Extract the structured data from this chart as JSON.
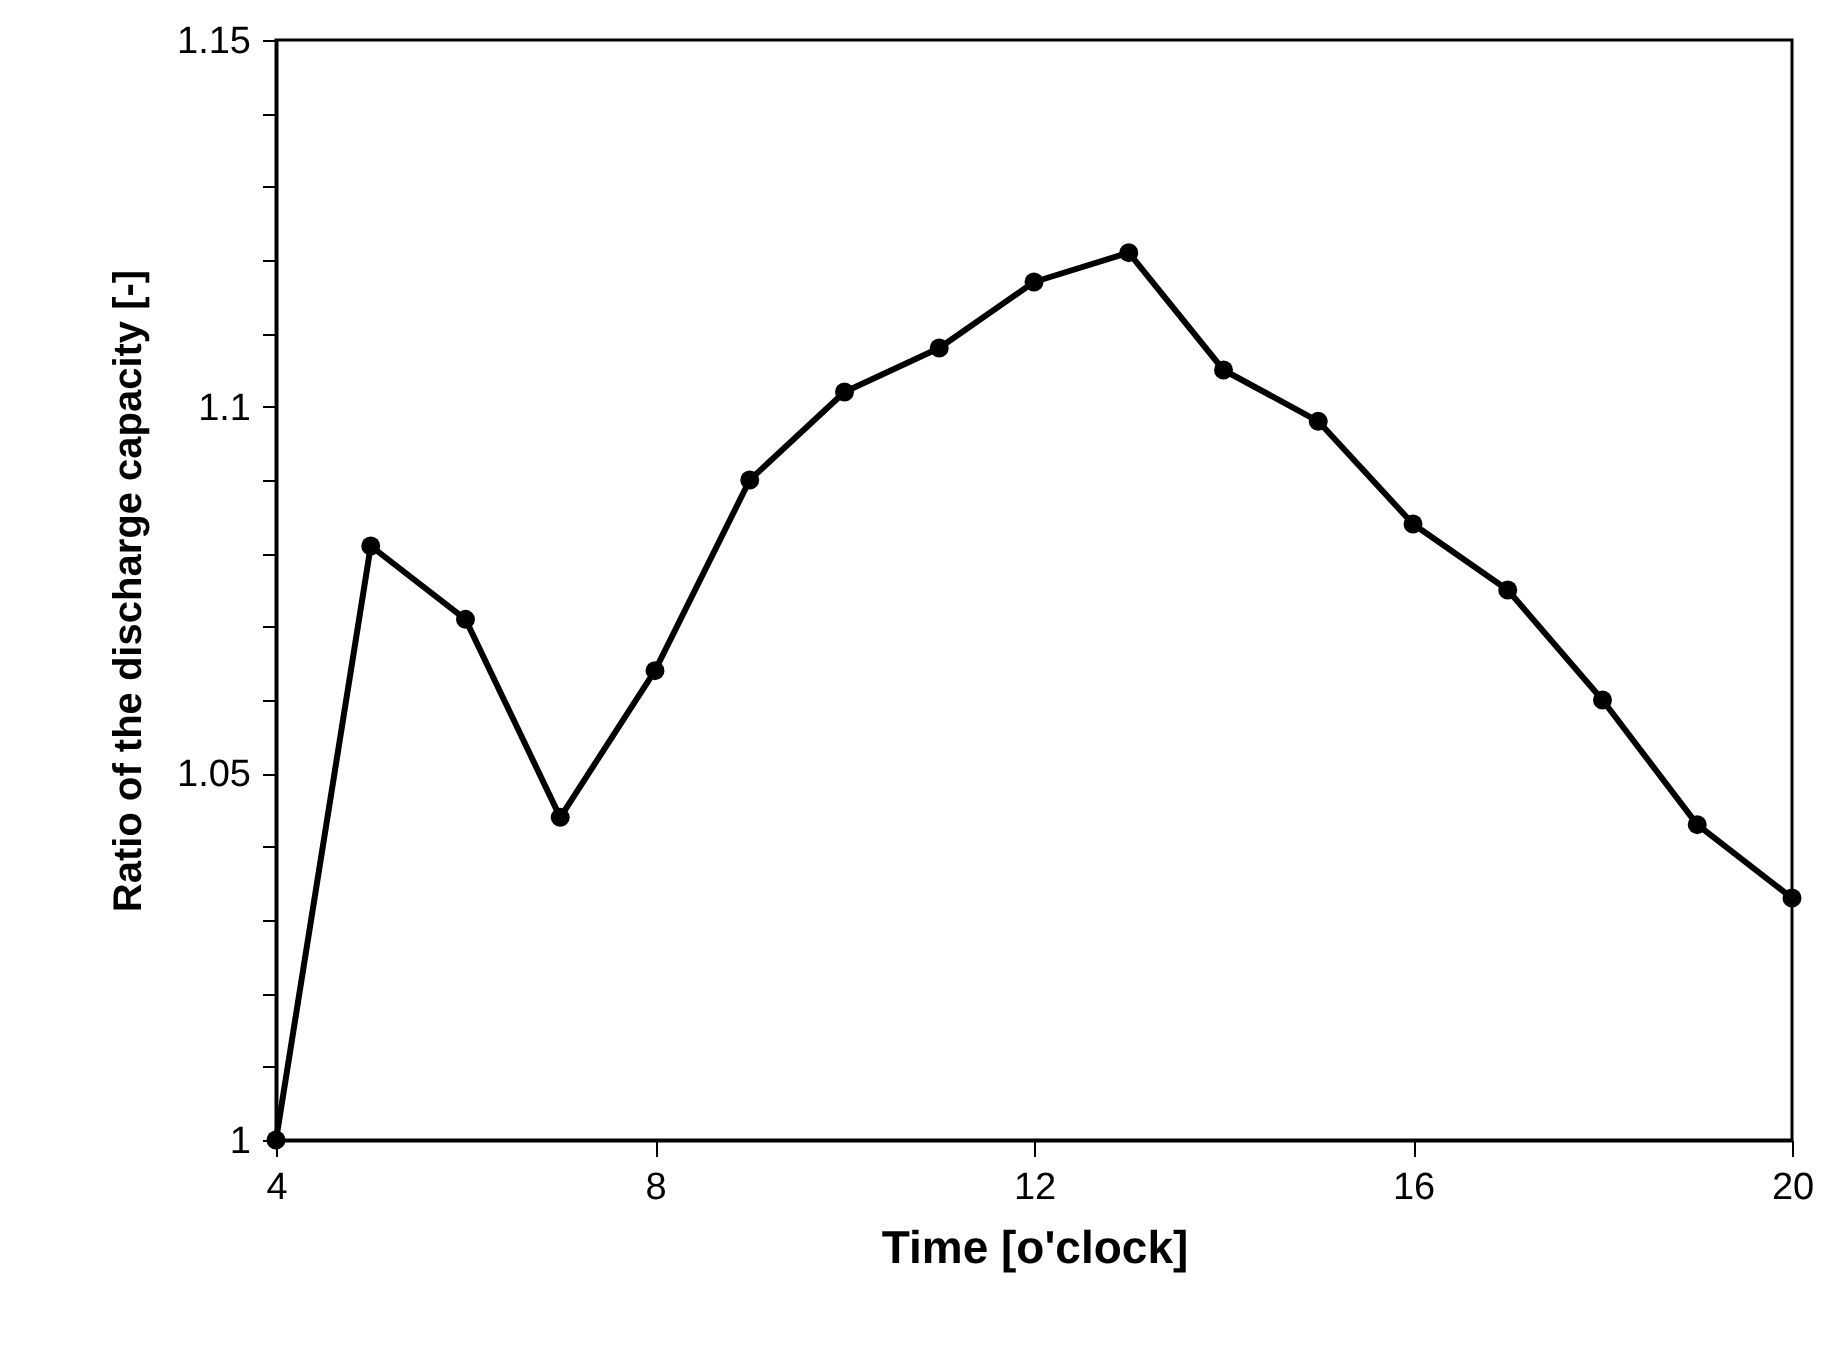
{
  "chart_data": {
    "type": "line",
    "xlabel": "Time [o'clock]",
    "ylabel": "Ratio of the discharge capacity [-]",
    "x": [
      4,
      5,
      6,
      7,
      8,
      9,
      10,
      11,
      12,
      13,
      14,
      15,
      16,
      17,
      18,
      19,
      20
    ],
    "series": [
      {
        "color": "#000000",
        "values": [
          1.0,
          1.081,
          1.071,
          1.044,
          1.064,
          1.09,
          1.102,
          1.108,
          1.117,
          1.121,
          1.105,
          1.098,
          1.084,
          1.075,
          1.06,
          1.043,
          1.033
        ]
      }
    ],
    "xlim": [
      4,
      20
    ],
    "xticks": [
      4,
      8,
      12,
      16,
      20
    ],
    "ylim": [
      1,
      1.15
    ],
    "yticks": [
      1,
      {
        "value": 1.01,
        "label": null
      },
      {
        "value": 1.02,
        "label": null
      },
      {
        "value": 1.03,
        "label": null
      },
      {
        "value": 1.04,
        "label": null
      },
      {
        "value": 1.05,
        "label": "1.05"
      },
      {
        "value": 1.06,
        "label": null
      },
      {
        "value": 1.07,
        "label": null
      },
      {
        "value": 1.08,
        "label": null
      },
      {
        "value": 1.09,
        "label": null
      },
      {
        "value": 1.1,
        "label": "1.1"
      },
      {
        "value": 1.11,
        "label": null
      },
      {
        "value": 1.12,
        "label": null
      },
      {
        "value": 1.13,
        "label": null
      },
      {
        "value": 1.14,
        "label": null
      },
      {
        "value": 1.15,
        "label": "1.15"
      }
    ],
    "grid": false,
    "marker": "circle",
    "line_style": "solid"
  }
}
